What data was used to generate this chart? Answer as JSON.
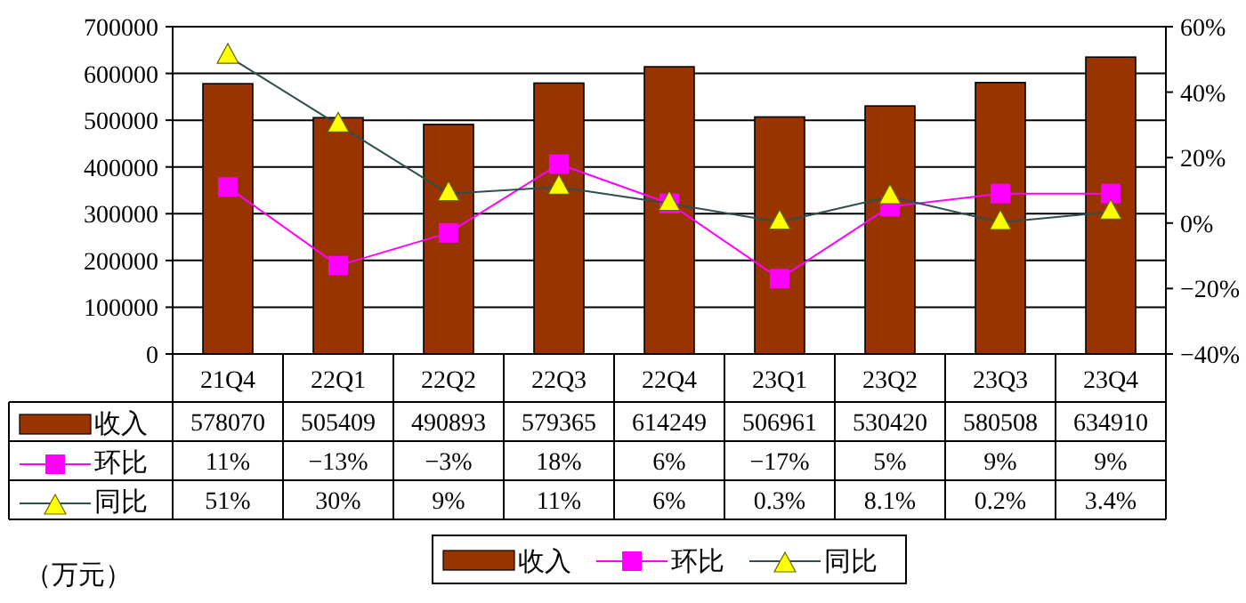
{
  "chart_data": {
    "type": "bar",
    "categories": [
      "21Q4",
      "22Q1",
      "22Q2",
      "22Q3",
      "22Q4",
      "23Q1",
      "23Q2",
      "23Q3",
      "23Q4"
    ],
    "series": [
      {
        "name": "收入",
        "color": "#993300",
        "values": [
          578070,
          505409,
          490893,
          579365,
          614249,
          506961,
          530420,
          580508,
          634910
        ]
      },
      {
        "name": "环比",
        "type": "line",
        "axis": "y2",
        "color": "#ff00ff",
        "marker": "square",
        "values": [
          11,
          -13,
          -3,
          18,
          6,
          -17,
          5,
          9,
          9
        ],
        "value_labels": [
          "11%",
          "−13%",
          "−3%",
          "18%",
          "6%",
          "−17%",
          "5%",
          "9%",
          "9%"
        ]
      },
      {
        "name": "同比",
        "type": "line",
        "axis": "y2",
        "color": "#2f4f4f",
        "marker": "triangle",
        "values": [
          51,
          30,
          9,
          11,
          6,
          0.3,
          8.1,
          0.2,
          3.4
        ],
        "value_labels": [
          "51%",
          "30%",
          "9%",
          "11%",
          "6%",
          "0.3%",
          "8.1%",
          "0.2%",
          "3.4%"
        ]
      }
    ],
    "ylim": [
      0,
      700000
    ],
    "yticks": [
      0,
      100000,
      200000,
      300000,
      400000,
      500000,
      600000,
      700000
    ],
    "y2lim": [
      -40,
      60
    ],
    "y2ticks": [
      {
        "value": -40,
        "label": "−40%"
      },
      {
        "value": -20,
        "label": "−20%"
      },
      {
        "value": 0,
        "label": "0%"
      },
      {
        "value": 20,
        "label": "20%"
      },
      {
        "value": 40,
        "label": "40%"
      },
      {
        "value": 60,
        "label": "60%"
      }
    ],
    "grid": "y",
    "legend": "bottom",
    "data_labels": true,
    "annotations": [
      "（万元）"
    ]
  }
}
